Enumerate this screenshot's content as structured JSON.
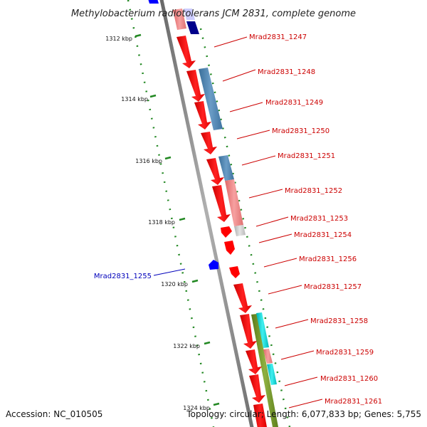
{
  "title": "Methylobacterium radiotolerans JCM 2831, complete genome",
  "footer": {
    "accession": "Accession: NC_010505",
    "summary": "Topology: circular; Length: 6,077,833 bp; Genes: 5,755"
  },
  "ticks": [
    {
      "label": "1312 kbp",
      "kbp": 1312
    },
    {
      "label": "1314 kbp",
      "kbp": 1314
    },
    {
      "label": "1316 kbp",
      "kbp": 1316
    },
    {
      "label": "1318 kbp",
      "kbp": 1318
    },
    {
      "label": "1320 kbp",
      "kbp": 1320
    },
    {
      "label": "1322 kbp",
      "kbp": 1322
    },
    {
      "label": "1324 kbp",
      "kbp": 1324
    }
  ],
  "genes": [
    {
      "label": "Mrad2831_1247",
      "strand": "forward"
    },
    {
      "label": "Mrad2831_1248",
      "strand": "forward"
    },
    {
      "label": "Mrad2831_1249",
      "strand": "forward"
    },
    {
      "label": "Mrad2831_1250",
      "strand": "forward"
    },
    {
      "label": "Mrad2831_1251",
      "strand": "forward"
    },
    {
      "label": "Mrad2831_1252",
      "strand": "forward"
    },
    {
      "label": "Mrad2831_1253",
      "strand": "forward"
    },
    {
      "label": "Mrad2831_1254",
      "strand": "forward"
    },
    {
      "label": "Mrad2831_1255",
      "strand": "reverse"
    },
    {
      "label": "Mrad2831_1256",
      "strand": "forward"
    },
    {
      "label": "Mrad2831_1257",
      "strand": "forward"
    },
    {
      "label": "Mrad2831_1258",
      "strand": "forward"
    },
    {
      "label": "Mrad2831_1259",
      "strand": "forward"
    },
    {
      "label": "Mrad2831_1260",
      "strand": "forward"
    },
    {
      "label": "Mrad2831_1261",
      "strand": "forward"
    }
  ],
  "colors": {
    "forward_gene": "#ff0000",
    "reverse_gene": "#0000ff",
    "forward_label": "#cc0000",
    "reverse_label": "#0000bb",
    "backbone": "#888888",
    "tick": "#228822",
    "feature_blue": "#4682b4",
    "feature_pink": "#f08080",
    "feature_cyan": "#00cccc",
    "feature_olive": "#6b8e23",
    "feature_navy": "#00008b",
    "feature_grey": "#c8c8c8"
  }
}
